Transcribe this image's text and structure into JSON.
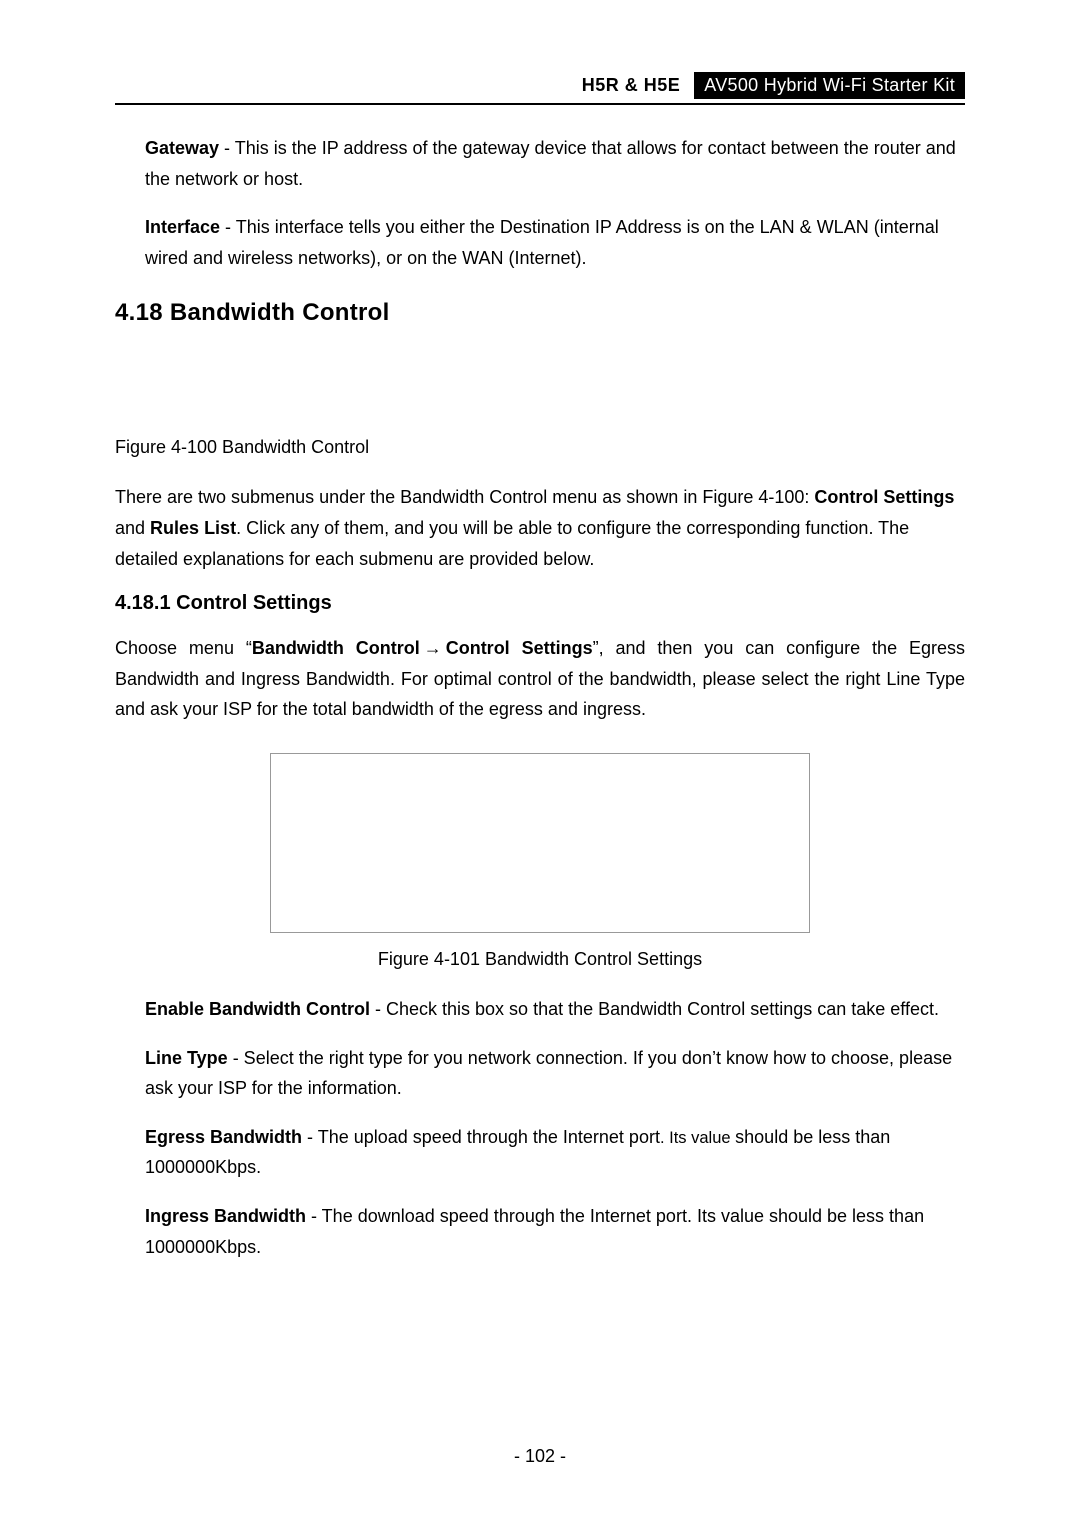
{
  "header": {
    "model": "H5R & H5E",
    "product": "AV500 Hybrid Wi-Fi Starter Kit",
    "badge_bg": "#000000",
    "badge_fg": "#ffffff"
  },
  "p_gateway": {
    "term": "Gateway",
    "rest": " - This is the IP address of the gateway device that allows for contact between the router and the network or host."
  },
  "p_interface": {
    "term": "Interface",
    "rest": " - This interface tells you either the Destination IP Address is on the LAN & WLAN (internal wired and wireless networks), or on the WAN (Internet)."
  },
  "h2_bandwidth": "4.18  Bandwidth Control",
  "fig100": "Figure 4-100 Bandwidth Control",
  "p_submenus": {
    "t1": "There are two submenus under the Bandwidth Control menu as shown in Figure 4-100: ",
    "b1": "Control Settings",
    "t2": " and ",
    "b2": "Rules List",
    "t3": ". Click any of them, and you will be able to configure the corresponding function. The detailed explanations for each submenu are provided below."
  },
  "h3_ctrl": "4.18.1  Control Settings",
  "p_choose": {
    "t1": "Choose  menu  “",
    "b1": "Bandwidth  Control",
    "arrow": "→",
    "b2": "Control  Settings",
    "t2": "”,  and  then  you  can  configure  the Egress Bandwidth and Ingress Bandwidth. For optimal control of the bandwidth, please select the right Line Type and ask your ISP for the total bandwidth of the egress and ingress."
  },
  "fig101": "Figure 4-101 Bandwidth Control Settings",
  "p_enable": {
    "term": "Enable Bandwidth Control",
    "rest": " - Check this box so that the Bandwidth Control settings can take effect."
  },
  "p_linetype": {
    "term": "Line Type",
    "rest": " - Select the right type for you network connection. If you don’t know how to choose, please ask your ISP for the information."
  },
  "p_egress": {
    "term": "Egress Bandwidth ",
    "mid": "- The upload speed through the Internet port",
    "small": ". Its value ",
    "rest": "should be less than 1000000Kbps."
  },
  "p_ingress": {
    "term": "Ingress Bandwidth",
    "rest": " - The download speed through the Internet port. Its value should be less than 1000000Kbps."
  },
  "page_num": "- 102 -",
  "colors": {
    "text": "#000000",
    "bg": "#ffffff",
    "rule": "#000000",
    "box_border": "#999999"
  }
}
